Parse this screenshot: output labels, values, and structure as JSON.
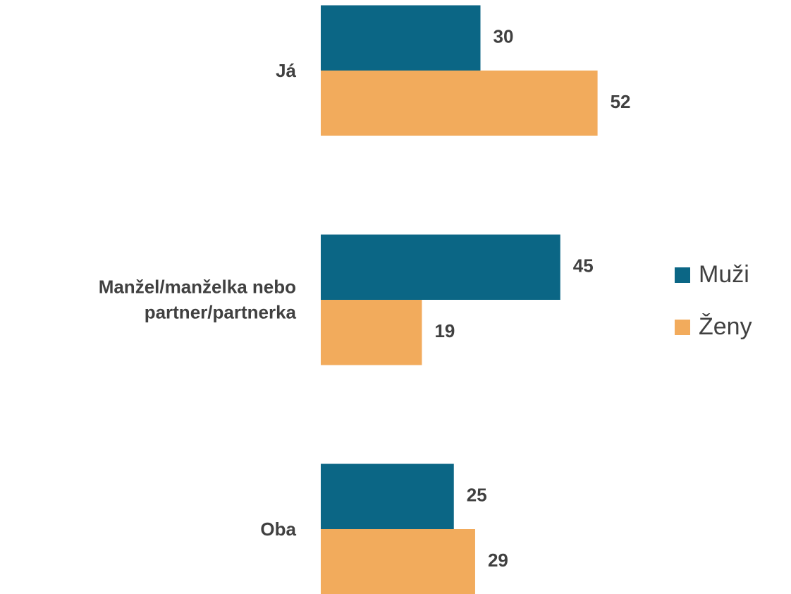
{
  "chart_data": {
    "type": "bar",
    "orientation": "horizontal",
    "categories": [
      "Já",
      "Manžel/manželka nebo partner/partnerka",
      "Oba"
    ],
    "series": [
      {
        "name": "Muži",
        "color": "#0b6685",
        "values": [
          30,
          45,
          25
        ]
      },
      {
        "name": "Ženy",
        "color": "#f2ab5c",
        "values": [
          52,
          19,
          29
        ]
      }
    ],
    "xlim": [
      0,
      60
    ],
    "grid": false,
    "legend": "right"
  }
}
